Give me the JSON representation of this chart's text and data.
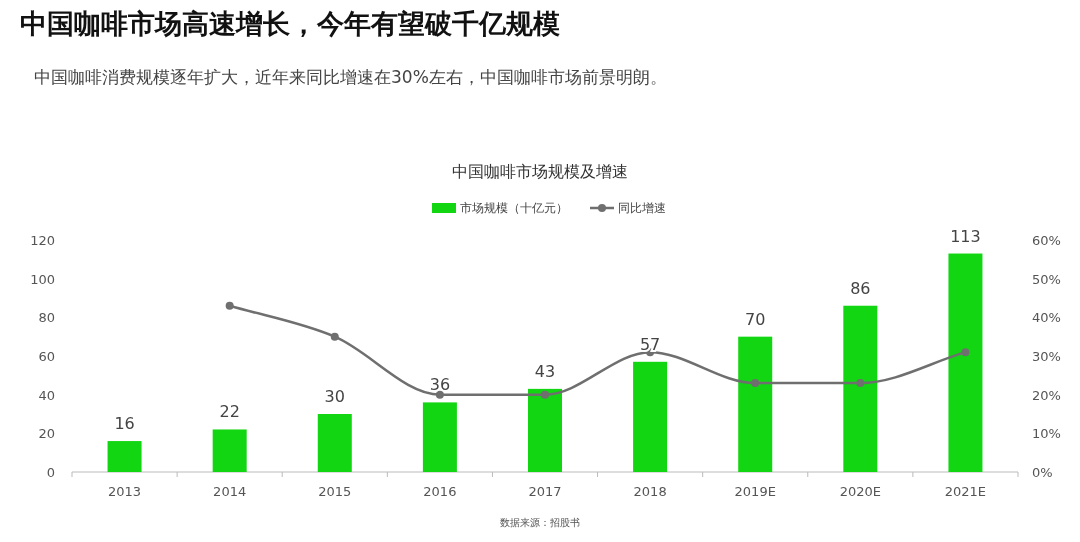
{
  "chart_data": {
    "type": "bar",
    "title": "中国咖啡市场高速增长，今年有望破千亿规模",
    "subtitle": "中国咖啡消费规模逐年扩大，近年来同比增速在30%左右，中国咖啡市场前景明朗。",
    "annotations": [
      "中国咖啡市场规模及增速",
      "数据来源：招股书"
    ],
    "categories": [
      "2013",
      "2014",
      "2015",
      "2016",
      "2017",
      "2018",
      "2019E",
      "2020E",
      "2021E"
    ],
    "series": [
      {
        "name": "市场规模（十亿元）",
        "color": "#11d611",
        "values": [
          16,
          22,
          30,
          36,
          43,
          57,
          70,
          86,
          113
        ],
        "value_labels": [
          "16",
          "22",
          "30",
          "36",
          "43",
          "57",
          "70",
          "86",
          "113"
        ]
      },
      {
        "name": "同比增速",
        "type": "line",
        "axis": "y2",
        "color": "#6f6f6f",
        "marker": "circle",
        "line_style": "solid",
        "values": [
          null,
          43,
          35,
          20,
          20,
          31,
          23,
          23,
          31
        ]
      }
    ],
    "ylim": [
      0,
      120
    ],
    "yticks": [
      0,
      20,
      40,
      60,
      80,
      100,
      120
    ],
    "y2lim": [
      0,
      60
    ],
    "y2ticks": [
      {
        "value": 0,
        "label": "0%"
      },
      {
        "value": 10,
        "label": "10%"
      },
      {
        "value": 20,
        "label": "20%"
      },
      {
        "value": 30,
        "label": "30%"
      },
      {
        "value": 40,
        "label": "40%"
      },
      {
        "value": 50,
        "label": "50%"
      },
      {
        "value": 60,
        "label": "60%"
      }
    ],
    "legend": "top",
    "grid": false
  }
}
